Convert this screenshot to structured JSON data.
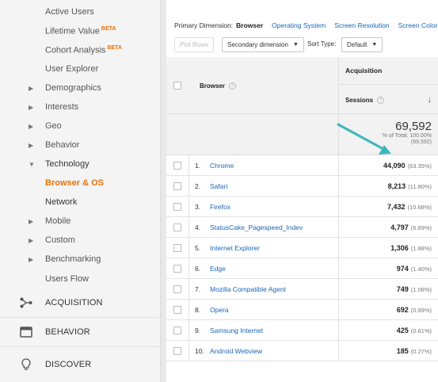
{
  "sidebar": {
    "audience_items": [
      {
        "label": "Active Users",
        "beta": "",
        "has_arrow": false
      },
      {
        "label": "Lifetime Value",
        "beta": "BETA",
        "has_arrow": false
      },
      {
        "label": "Cohort Analysis",
        "beta": "BETA",
        "has_arrow": false
      },
      {
        "label": "User Explorer",
        "beta": "",
        "has_arrow": false
      },
      {
        "label": "Demographics",
        "beta": "",
        "has_arrow": true,
        "arrow": "▶"
      },
      {
        "label": "Interests",
        "beta": "",
        "has_arrow": true,
        "arrow": "▶"
      },
      {
        "label": "Geo",
        "beta": "",
        "has_arrow": true,
        "arrow": "▶"
      },
      {
        "label": "Behavior",
        "beta": "",
        "has_arrow": true,
        "arrow": "▶"
      },
      {
        "label": "Technology",
        "beta": "",
        "has_arrow": true,
        "arrow": "▼"
      },
      {
        "label": "Browser & OS",
        "beta": "",
        "has_arrow": false
      },
      {
        "label": "Network",
        "beta": "",
        "has_arrow": false
      },
      {
        "label": "Mobile",
        "beta": "",
        "has_arrow": true,
        "arrow": "▶"
      },
      {
        "label": "Custom",
        "beta": "",
        "has_arrow": true,
        "arrow": "▶"
      },
      {
        "label": "Benchmarking",
        "beta": "",
        "has_arrow": true,
        "arrow": "▶"
      },
      {
        "label": "Users Flow",
        "beta": "",
        "has_arrow": false
      }
    ],
    "sections": [
      {
        "label": "ACQUISITION",
        "icon": "acquisition-icon"
      },
      {
        "label": "BEHAVIOR",
        "icon": "behavior-icon"
      },
      {
        "label": "DISCOVER",
        "icon": "lightbulb-icon"
      }
    ]
  },
  "dimension_bar": {
    "label": "Primary Dimension:",
    "selected": "Browser",
    "options": [
      "Operating System",
      "Screen Resolution",
      "Screen Colors"
    ]
  },
  "toolbar": {
    "plot_rows": "Plot Rows",
    "secondary_dimension": "Secondary dimension",
    "sort_type_label": "Sort Type:",
    "sort_type_value": "Default"
  },
  "table": {
    "group_header": "Acquisition",
    "browser_header": "Browser",
    "sessions_header": "Sessions",
    "help_mark": "?",
    "sort_arrow": "↓",
    "total": {
      "value": "69,592",
      "pct_line": "% of Total: 100.00%",
      "abs_line": "(69,592)"
    },
    "rows": [
      {
        "num": "1.",
        "name": "Chrome",
        "sessions": "44,090",
        "pct": "(63.35%)"
      },
      {
        "num": "2.",
        "name": "Safari",
        "sessions": "8,213",
        "pct": "(11.80%)"
      },
      {
        "num": "3.",
        "name": "Firefox",
        "sessions": "7,432",
        "pct": "(10.68%)"
      },
      {
        "num": "4.",
        "name": "StatusCake_Pagespeed_Indev",
        "sessions": "4,797",
        "pct": "(6.89%)"
      },
      {
        "num": "5.",
        "name": "Internet Explorer",
        "sessions": "1,306",
        "pct": "(1.88%)"
      },
      {
        "num": "6.",
        "name": "Edge",
        "sessions": "974",
        "pct": "(1.40%)"
      },
      {
        "num": "7.",
        "name": "Mozilla Compatible Agent",
        "sessions": "749",
        "pct": "(1.08%)"
      },
      {
        "num": "8.",
        "name": "Opera",
        "sessions": "692",
        "pct": "(0.99%)"
      },
      {
        "num": "9.",
        "name": "Samsung Internet",
        "sessions": "425",
        "pct": "(0.61%)"
      },
      {
        "num": "10.",
        "name": "Android Webview",
        "sessions": "185",
        "pct": "(0.27%)"
      }
    ]
  },
  "colors": {
    "accent": "#e8710a",
    "link": "#1a66b5",
    "annotation_arrow": "#3fb6bd"
  }
}
